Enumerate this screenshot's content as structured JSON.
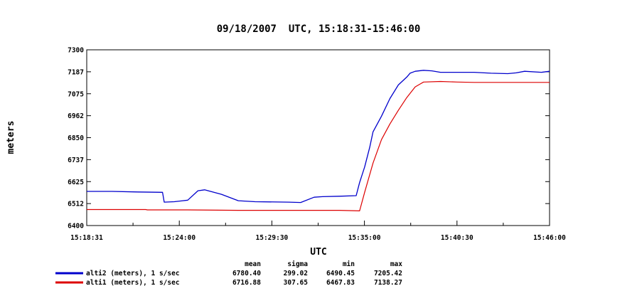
{
  "chart_data": {
    "type": "line",
    "title": "09/18/2007  UTC, 15:18:31-15:46:00",
    "xlabel": "UTC",
    "ylabel": "meters",
    "ylim": [
      6400,
      7300
    ],
    "y_ticks": [
      "6400",
      "6512",
      "6625",
      "6737",
      "6850",
      "6962",
      "7075",
      "7187",
      "7300"
    ],
    "x_ticks": [
      "15:18:31",
      "15:24:00",
      "15:29:30",
      "15:35:00",
      "15:40:30",
      "15:46:00"
    ],
    "x_unit": "minutes after 15:18:31",
    "stats_headers": [
      "mean",
      "sigma",
      "min",
      "max"
    ],
    "series": [
      {
        "name": "alti2 (meters), 1 s/sec",
        "color": "#0000cc",
        "stats": [
          "6780.40",
          "299.02",
          "6490.45",
          "7205.42"
        ],
        "x": [
          0,
          1.5,
          3,
          4.5,
          4.6,
          5.2,
          6,
          6.6,
          7,
          8,
          9,
          10,
          12,
          12.7,
          13.5,
          14,
          15,
          16,
          16.2,
          16.5,
          16.8,
          17,
          17.5,
          18,
          18.5,
          19,
          19.2,
          19.5,
          20,
          20.5,
          21,
          21.5,
          22,
          23,
          24,
          25,
          25.5,
          26,
          27,
          27.48
        ],
        "y": [
          6575,
          6575,
          6572,
          6570,
          6520,
          6522,
          6530,
          6578,
          6583,
          6560,
          6527,
          6522,
          6520,
          6518,
          6545,
          6548,
          6550,
          6553,
          6620,
          6700,
          6800,
          6880,
          6960,
          7050,
          7120,
          7160,
          7180,
          7190,
          7195,
          7192,
          7185,
          7185,
          7185,
          7185,
          7180,
          7178,
          7182,
          7190,
          7185,
          7190
        ]
      },
      {
        "name": "alti1 (meters), 1 s/sec",
        "color": "#dd0000",
        "stats": [
          "6716.88",
          "307.65",
          "6467.83",
          "7138.27"
        ],
        "x": [
          0,
          3.5,
          3.6,
          6,
          9,
          12,
          15,
          16.2,
          16.5,
          17,
          17.5,
          18,
          18.5,
          19,
          19.5,
          19.8,
          20,
          21,
          22,
          23,
          25,
          27.48
        ],
        "y": [
          6482,
          6482,
          6480,
          6480,
          6478,
          6478,
          6478,
          6475,
          6570,
          6720,
          6840,
          6920,
          6990,
          7055,
          7110,
          7125,
          7135,
          7138,
          7135,
          7133,
          7133,
          7133
        ]
      }
    ]
  }
}
